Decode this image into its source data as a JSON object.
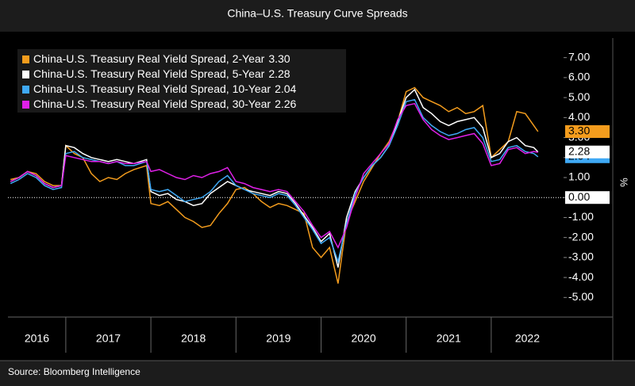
{
  "chart_data": {
    "type": "line",
    "title": "China–U.S. Treasury Curve Spreads",
    "source": "Source: Bloomberg Intelligence",
    "y_axis_label": "%",
    "x": [
      2016.35,
      2016.45,
      2016.55,
      2016.65,
      2016.75,
      2016.85,
      2016.95,
      2017.0,
      2017.1,
      2017.2,
      2017.3,
      2017.4,
      2017.5,
      2017.6,
      2017.7,
      2017.8,
      2017.95,
      2018.0,
      2018.1,
      2018.2,
      2018.3,
      2018.4,
      2018.5,
      2018.6,
      2018.7,
      2018.8,
      2018.9,
      2019.0,
      2019.1,
      2019.2,
      2019.3,
      2019.4,
      2019.5,
      2019.6,
      2019.7,
      2019.8,
      2019.9,
      2020.0,
      2020.1,
      2020.2,
      2020.3,
      2020.4,
      2020.5,
      2020.6,
      2020.7,
      2020.8,
      2020.9,
      2021.0,
      2021.1,
      2021.2,
      2021.3,
      2021.4,
      2021.5,
      2021.6,
      2021.7,
      2021.8,
      2021.9,
      2022.0,
      2022.1,
      2022.2,
      2022.3,
      2022.4,
      2022.5,
      2022.55
    ],
    "series": [
      {
        "name": "China-U.S. Treasury Real Yield Spread, 2-Year",
        "color": "#f39c1d",
        "last_value_label": "3.30",
        "values": [
          0.9,
          1.0,
          1.3,
          1.2,
          0.8,
          0.6,
          0.6,
          2.6,
          2.2,
          2.0,
          1.2,
          0.8,
          1.0,
          0.9,
          1.2,
          1.4,
          1.6,
          -0.3,
          -0.4,
          -0.2,
          -0.6,
          -1.0,
          -1.2,
          -1.5,
          -1.4,
          -0.8,
          -0.3,
          0.4,
          0.5,
          0.2,
          -0.2,
          -0.5,
          -0.3,
          -0.4,
          -0.6,
          -0.8,
          -2.5,
          -3.0,
          -2.5,
          -4.3,
          -1.2,
          -0.2,
          0.8,
          1.5,
          2.2,
          2.8,
          3.8,
          5.3,
          5.5,
          5.0,
          4.8,
          4.6,
          4.3,
          4.5,
          4.2,
          4.3,
          4.6,
          2.0,
          2.4,
          2.8,
          4.3,
          4.2,
          3.6,
          3.3
        ]
      },
      {
        "name": "China-U.S. Treasury Real Yield Spread, 5-Year",
        "color": "#ffffff",
        "last_value_label": "2.28",
        "values": [
          0.8,
          1.0,
          1.3,
          1.1,
          0.7,
          0.5,
          0.6,
          2.6,
          2.5,
          2.2,
          2.0,
          1.9,
          1.8,
          1.9,
          1.8,
          1.7,
          1.9,
          0.3,
          0.1,
          0.2,
          -0.1,
          -0.2,
          -0.4,
          -0.3,
          0.2,
          0.5,
          0.8,
          0.6,
          0.4,
          0.3,
          0.2,
          0.1,
          0.3,
          0.2,
          -0.3,
          -0.9,
          -1.5,
          -2.2,
          -1.8,
          -3.5,
          -1.0,
          0.3,
          1.0,
          1.6,
          2.0,
          2.6,
          3.8,
          5.0,
          5.4,
          4.5,
          4.2,
          3.8,
          3.6,
          3.8,
          3.9,
          4.0,
          3.5,
          2.0,
          2.2,
          2.8,
          3.0,
          2.6,
          2.5,
          2.28
        ]
      },
      {
        "name": "China-U.S. Treasury Real Yield Spread, 10-Year",
        "color": "#3fa9f5",
        "last_value_label": "2.04",
        "values": [
          0.7,
          0.9,
          1.2,
          1.0,
          0.6,
          0.4,
          0.5,
          2.2,
          2.3,
          2.0,
          1.9,
          1.8,
          1.7,
          1.8,
          1.6,
          1.6,
          1.8,
          0.4,
          0.3,
          0.4,
          0.1,
          -0.2,
          -0.1,
          0.0,
          0.3,
          0.8,
          1.1,
          0.6,
          0.4,
          0.2,
          0.1,
          0.0,
          0.2,
          0.1,
          -0.4,
          -1.0,
          -1.6,
          -2.3,
          -2.0,
          -3.2,
          -1.3,
          0.2,
          1.0,
          1.6,
          2.0,
          2.6,
          3.6,
          4.8,
          4.9,
          4.0,
          3.6,
          3.3,
          3.1,
          3.2,
          3.4,
          3.5,
          3.0,
          1.8,
          1.9,
          2.5,
          2.6,
          2.3,
          2.2,
          2.04
        ]
      },
      {
        "name": "China-U.S. Treasury Real Yield Spread, 30-Year",
        "color": "#e020e8",
        "last_value_label": "2.26",
        "values": [
          0.8,
          1.0,
          1.3,
          1.1,
          0.7,
          0.5,
          0.6,
          2.1,
          2.0,
          1.9,
          1.8,
          1.8,
          1.7,
          1.8,
          1.7,
          1.7,
          1.8,
          1.3,
          1.4,
          1.2,
          1.0,
          0.9,
          1.1,
          1.0,
          1.2,
          1.3,
          1.5,
          0.8,
          0.7,
          0.5,
          0.4,
          0.3,
          0.4,
          0.3,
          -0.2,
          -0.7,
          -1.4,
          -2.0,
          -1.7,
          -2.5,
          -1.5,
          0.0,
          1.2,
          1.7,
          2.2,
          2.7,
          3.9,
          4.6,
          4.7,
          3.9,
          3.4,
          3.1,
          2.9,
          3.0,
          3.1,
          3.2,
          2.7,
          1.6,
          1.7,
          2.4,
          2.5,
          2.2,
          2.3,
          2.26
        ]
      }
    ],
    "xlim": [
      2016.32,
      2022.85
    ],
    "xticks": [
      {
        "value": 2016.5,
        "label": "2016"
      },
      {
        "value": 2017.5,
        "label": "2017"
      },
      {
        "value": 2018.5,
        "label": "2018"
      },
      {
        "value": 2019.5,
        "label": "2019"
      },
      {
        "value": 2020.5,
        "label": "2020"
      },
      {
        "value": 2021.5,
        "label": "2021"
      },
      {
        "value": 2022.5,
        "label": "2022"
      }
    ],
    "ylim": [
      -5.9,
      7.9
    ],
    "yticks": [
      {
        "value": 7,
        "label": "7.00"
      },
      {
        "value": 6,
        "label": "6.00"
      },
      {
        "value": 5,
        "label": "5.00"
      },
      {
        "value": 4,
        "label": "4.00"
      },
      {
        "value": 3,
        "label": "3.00"
      },
      {
        "value": 2,
        "label": "2.00"
      },
      {
        "value": 1,
        "label": "1.00"
      },
      {
        "value": 0,
        "label": "0.00"
      },
      {
        "value": -1,
        "label": "-1.00"
      },
      {
        "value": -2,
        "label": "-2.00"
      },
      {
        "value": -3,
        "label": "-3.00"
      },
      {
        "value": -4,
        "label": "-4.00"
      },
      {
        "value": -5,
        "label": "-5.00"
      }
    ],
    "legend": "top-left"
  }
}
